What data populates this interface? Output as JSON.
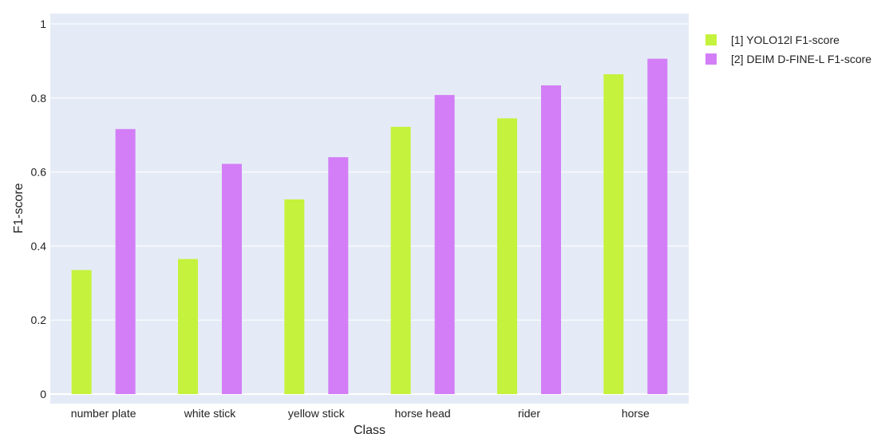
{
  "chart_data": {
    "type": "bar",
    "title": "",
    "xlabel": "Class",
    "ylabel": "F1-score",
    "ylim": [
      0,
      1
    ],
    "yticks": [
      0,
      0.2,
      0.4,
      0.6,
      0.8,
      1
    ],
    "ytick_labels": [
      "0",
      "0.2",
      "0.4",
      "0.6",
      "0.8",
      "1"
    ],
    "grid": true,
    "legend_position": "top-right, outside plot",
    "categories": [
      "number plate",
      "white stick",
      "yellow stick",
      "horse head",
      "rider",
      "horse"
    ],
    "series": [
      {
        "name": "[1] YOLO12l F1-score",
        "color": "#c5f23c",
        "values": [
          0.335,
          0.365,
          0.526,
          0.722,
          0.745,
          0.864
        ]
      },
      {
        "name": "[2] DEIM D-FINE-L F1-score",
        "color": "#d37ef7",
        "values": [
          0.716,
          0.622,
          0.64,
          0.808,
          0.834,
          0.906
        ]
      }
    ],
    "colors": {
      "plot_background": "#e5ebf6",
      "grid": "#ffffff",
      "text": "#222222"
    }
  }
}
